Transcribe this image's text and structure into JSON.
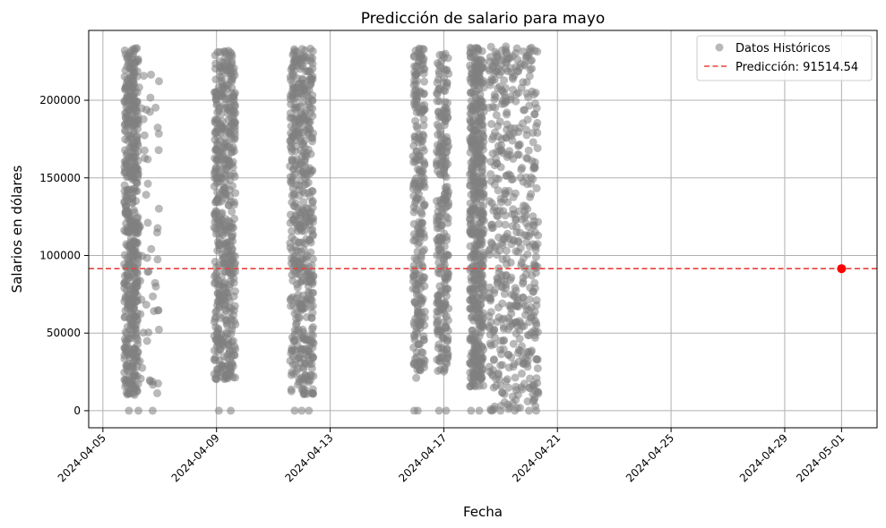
{
  "chart_data": {
    "type": "scatter",
    "title": "Predicción de salario para mayo",
    "xlabel": "Fecha",
    "ylabel": "Salarios en dólares",
    "x_type": "date",
    "xlim": [
      "2024-04-04T12:00",
      "2024-05-02T06:00"
    ],
    "ylim": [
      -11000,
      245000
    ],
    "x_ticks": [
      "2024-04-05",
      "2024-04-09",
      "2024-04-13",
      "2024-04-17",
      "2024-04-21",
      "2024-04-25",
      "2024-04-29",
      "2024-05-01"
    ],
    "y_ticks": [
      0,
      50000,
      100000,
      150000,
      200000
    ],
    "y_tick_labels": [
      "0",
      "50000",
      "100000",
      "150000",
      "200000"
    ],
    "grid": true,
    "legend_position": "top-right",
    "series": [
      {
        "name": "Datos Históricos",
        "kind": "scatter",
        "color": "#808080",
        "opacity": 0.55,
        "clusters": [
          {
            "x_start": "2024-04-05T18:00",
            "x_end": "2024-04-06T06:00",
            "y_min": 10000,
            "y_max": 234000,
            "density": "very-high"
          },
          {
            "x_start": "2024-04-06T06:00",
            "x_end": "2024-04-07T00:00",
            "y_min": 0,
            "y_max": 225000,
            "density": "low"
          },
          {
            "x_start": "2024-04-08T22:00",
            "x_end": "2024-04-09T16:00",
            "y_min": 20000,
            "y_max": 232000,
            "density": "very-high"
          },
          {
            "x_start": "2024-04-11T14:00",
            "x_end": "2024-04-12T10:00",
            "y_min": 10000,
            "y_max": 234000,
            "density": "very-high"
          },
          {
            "x_start": "2024-04-15T22:00",
            "x_end": "2024-04-16T08:00",
            "y_min": 20000,
            "y_max": 234000,
            "density": "high"
          },
          {
            "x_start": "2024-04-16T18:00",
            "x_end": "2024-04-17T04:00",
            "y_min": 25000,
            "y_max": 230000,
            "density": "high"
          },
          {
            "x_start": "2024-04-17T22:00",
            "x_end": "2024-04-18T10:00",
            "y_min": 15000,
            "y_max": 234000,
            "density": "very-high"
          },
          {
            "x_start": "2024-04-18T14:00",
            "x_end": "2024-04-20T08:00",
            "y_min": 0,
            "y_max": 235000,
            "density": "very-high"
          }
        ],
        "zero_points": [
          "2024-04-05T22:00",
          "2024-04-06T06:00",
          "2024-04-06T18:00",
          "2024-04-09T02:00",
          "2024-04-09T12:00",
          "2024-04-11T18:00",
          "2024-04-12T00:00",
          "2024-04-12T06:00",
          "2024-04-15T23:00",
          "2024-04-16T02:00",
          "2024-04-16T20:00",
          "2024-04-17T02:00",
          "2024-04-17T23:00",
          "2024-04-18T06:00",
          "2024-04-18T16:00",
          "2024-04-19T00:00",
          "2024-04-19T12:00",
          "2024-04-20T00:00",
          "2024-04-20T06:00"
        ]
      },
      {
        "name": "Predicción: 91514.54",
        "kind": "hline",
        "y": 91514.54,
        "color": "#e8423a",
        "style": "dashed"
      },
      {
        "kind": "point",
        "x": "2024-05-01",
        "y": 91514.54,
        "color": "#ff0000"
      }
    ]
  }
}
